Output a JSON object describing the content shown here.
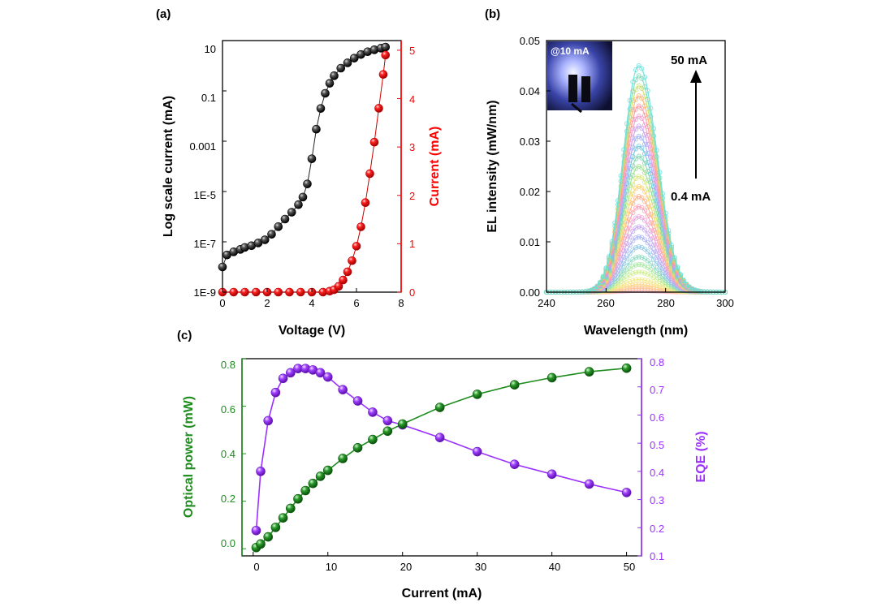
{
  "chart_data": [
    {
      "panel_label": "(a)",
      "type": "scatter",
      "xlabel": "Voltage (V)",
      "ylabel": "Log scale current (mA)",
      "ylabel2": "Current  (mA)",
      "xlim": [
        0,
        8
      ],
      "ylim_log": [
        1e-09,
        10
      ],
      "ylim_right": [
        0,
        5.2
      ],
      "y_scale": "log",
      "x_ticks": [
        "0",
        "2",
        "4",
        "6",
        "8"
      ],
      "y_ticks": [
        "1E-9",
        "1E-7",
        "1E-5",
        "0.001",
        "0.1",
        "10"
      ],
      "y2_ticks": [
        "0",
        "1",
        "2",
        "3",
        "4",
        "5"
      ],
      "colors": {
        "log": "#111111",
        "linear": "#ff0000"
      },
      "series": [
        {
          "axis": "left",
          "x": [
            0.0,
            0.2,
            0.5,
            0.8,
            1.0,
            1.3,
            1.6,
            1.9,
            2.2,
            2.5,
            2.8,
            3.1,
            3.4,
            3.6,
            3.8,
            4.0,
            4.2,
            4.4,
            4.6,
            4.8,
            5.0,
            5.3,
            5.6,
            5.9,
            6.2,
            6.5,
            6.8,
            7.1,
            7.3
          ],
          "y": [
            1e-08,
            3e-08,
            4e-08,
            5e-08,
            6e-08,
            7e-08,
            9e-08,
            1.2e-07,
            2e-07,
            4e-07,
            8e-07,
            1.5e-06,
            3e-06,
            6e-06,
            2e-05,
            0.0002,
            0.003,
            0.02,
            0.08,
            0.2,
            0.4,
            0.8,
            1.3,
            2.0,
            2.8,
            3.6,
            4.3,
            5.0,
            5.5
          ]
        },
        {
          "axis": "right",
          "x": [
            0.0,
            0.5,
            1.0,
            1.5,
            2.0,
            2.5,
            3.0,
            3.5,
            4.0,
            4.5,
            4.8,
            5.0,
            5.2,
            5.4,
            5.6,
            5.8,
            6.0,
            6.2,
            6.4,
            6.6,
            6.8,
            7.0,
            7.2,
            7.3
          ],
          "y": [
            0,
            0,
            0,
            0,
            0,
            0,
            0,
            0,
            0,
            0,
            0.02,
            0.05,
            0.12,
            0.25,
            0.42,
            0.65,
            0.95,
            1.35,
            1.85,
            2.45,
            3.1,
            3.8,
            4.5,
            4.9
          ]
        }
      ]
    },
    {
      "panel_label": "(b)",
      "type": "line",
      "xlabel": "Wavelength (nm)",
      "ylabel": "EL intensity (mW/nm)",
      "xlim": [
        240,
        300
      ],
      "ylim": [
        0,
        0.05
      ],
      "x_ticks": [
        "240",
        "260",
        "280",
        "300"
      ],
      "y_ticks": [
        "0.00",
        "0.01",
        "0.02",
        "0.03",
        "0.04",
        "0.05"
      ],
      "peak_wavelength": 271,
      "peak_intensities": [
        0.0003,
        0.0008,
        0.0015,
        0.0025,
        0.004,
        0.0055,
        0.007,
        0.009,
        0.011,
        0.013,
        0.015,
        0.017,
        0.019,
        0.021,
        0.023,
        0.025,
        0.027,
        0.029,
        0.031,
        0.033,
        0.035,
        0.037,
        0.039,
        0.041,
        0.043,
        0.045
      ],
      "colors": [
        "#ffb3c7",
        "#ffc39b",
        "#ffd58a",
        "#f3e98a",
        "#cfee8f",
        "#a9e8a3",
        "#8fd9c2",
        "#8fc8e6",
        "#a8b3f2",
        "#c4a8f0",
        "#e6a5d8",
        "#ff9fb5",
        "#ffad85",
        "#ffd070",
        "#d8e87a",
        "#9fe08f",
        "#7fd6b0",
        "#6ec7e0",
        "#9db0f5",
        "#c8a0ef",
        "#f29bcc",
        "#ff95a5",
        "#ffb070",
        "#c9e070",
        "#7ed9b8",
        "#66e0dd"
      ],
      "annotations": {
        "top": "50 mA",
        "bottom": "0.4 mA",
        "inset": "@10 mA"
      }
    },
    {
      "panel_label": "(c)",
      "type": "line",
      "xlabel": "Current (mA)",
      "ylabel": "Optical power (mW)",
      "ylabel2": "EQE (%)",
      "xlim": [
        -1.5,
        52
      ],
      "ylim": [
        -0.03,
        0.8
      ],
      "ylim_right": [
        0.1,
        0.8
      ],
      "x_ticks": [
        "0",
        "10",
        "20",
        "30",
        "40",
        "50"
      ],
      "y_ticks": [
        "0.0",
        "0.2",
        "0.4",
        "0.6",
        "0.8"
      ],
      "y2_ticks": [
        "0.1",
        "0.2",
        "0.3",
        "0.4",
        "0.5",
        "0.6",
        "0.7",
        "0.8"
      ],
      "colors": {
        "power": "#1e8c1e",
        "eqe": "#9b30ff"
      },
      "series": [
        {
          "axis": "left",
          "x": [
            0.4,
            1,
            2,
            3,
            4,
            5,
            6,
            7,
            8,
            9,
            10,
            12,
            14,
            16,
            18,
            20,
            25,
            30,
            35,
            40,
            45,
            50
          ],
          "y": [
            0.005,
            0.02,
            0.05,
            0.09,
            0.13,
            0.17,
            0.21,
            0.245,
            0.275,
            0.305,
            0.33,
            0.38,
            0.425,
            0.46,
            0.495,
            0.525,
            0.595,
            0.65,
            0.69,
            0.72,
            0.745,
            0.76
          ]
        },
        {
          "axis": "right",
          "x": [
            0.4,
            1,
            2,
            3,
            4,
            5,
            6,
            7,
            8,
            9,
            10,
            12,
            14,
            16,
            18,
            20,
            25,
            30,
            35,
            40,
            45,
            50
          ],
          "y": [
            0.19,
            0.4,
            0.58,
            0.68,
            0.73,
            0.75,
            0.765,
            0.765,
            0.76,
            0.75,
            0.735,
            0.69,
            0.65,
            0.61,
            0.58,
            0.565,
            0.52,
            0.47,
            0.425,
            0.39,
            0.355,
            0.325
          ]
        }
      ]
    }
  ]
}
